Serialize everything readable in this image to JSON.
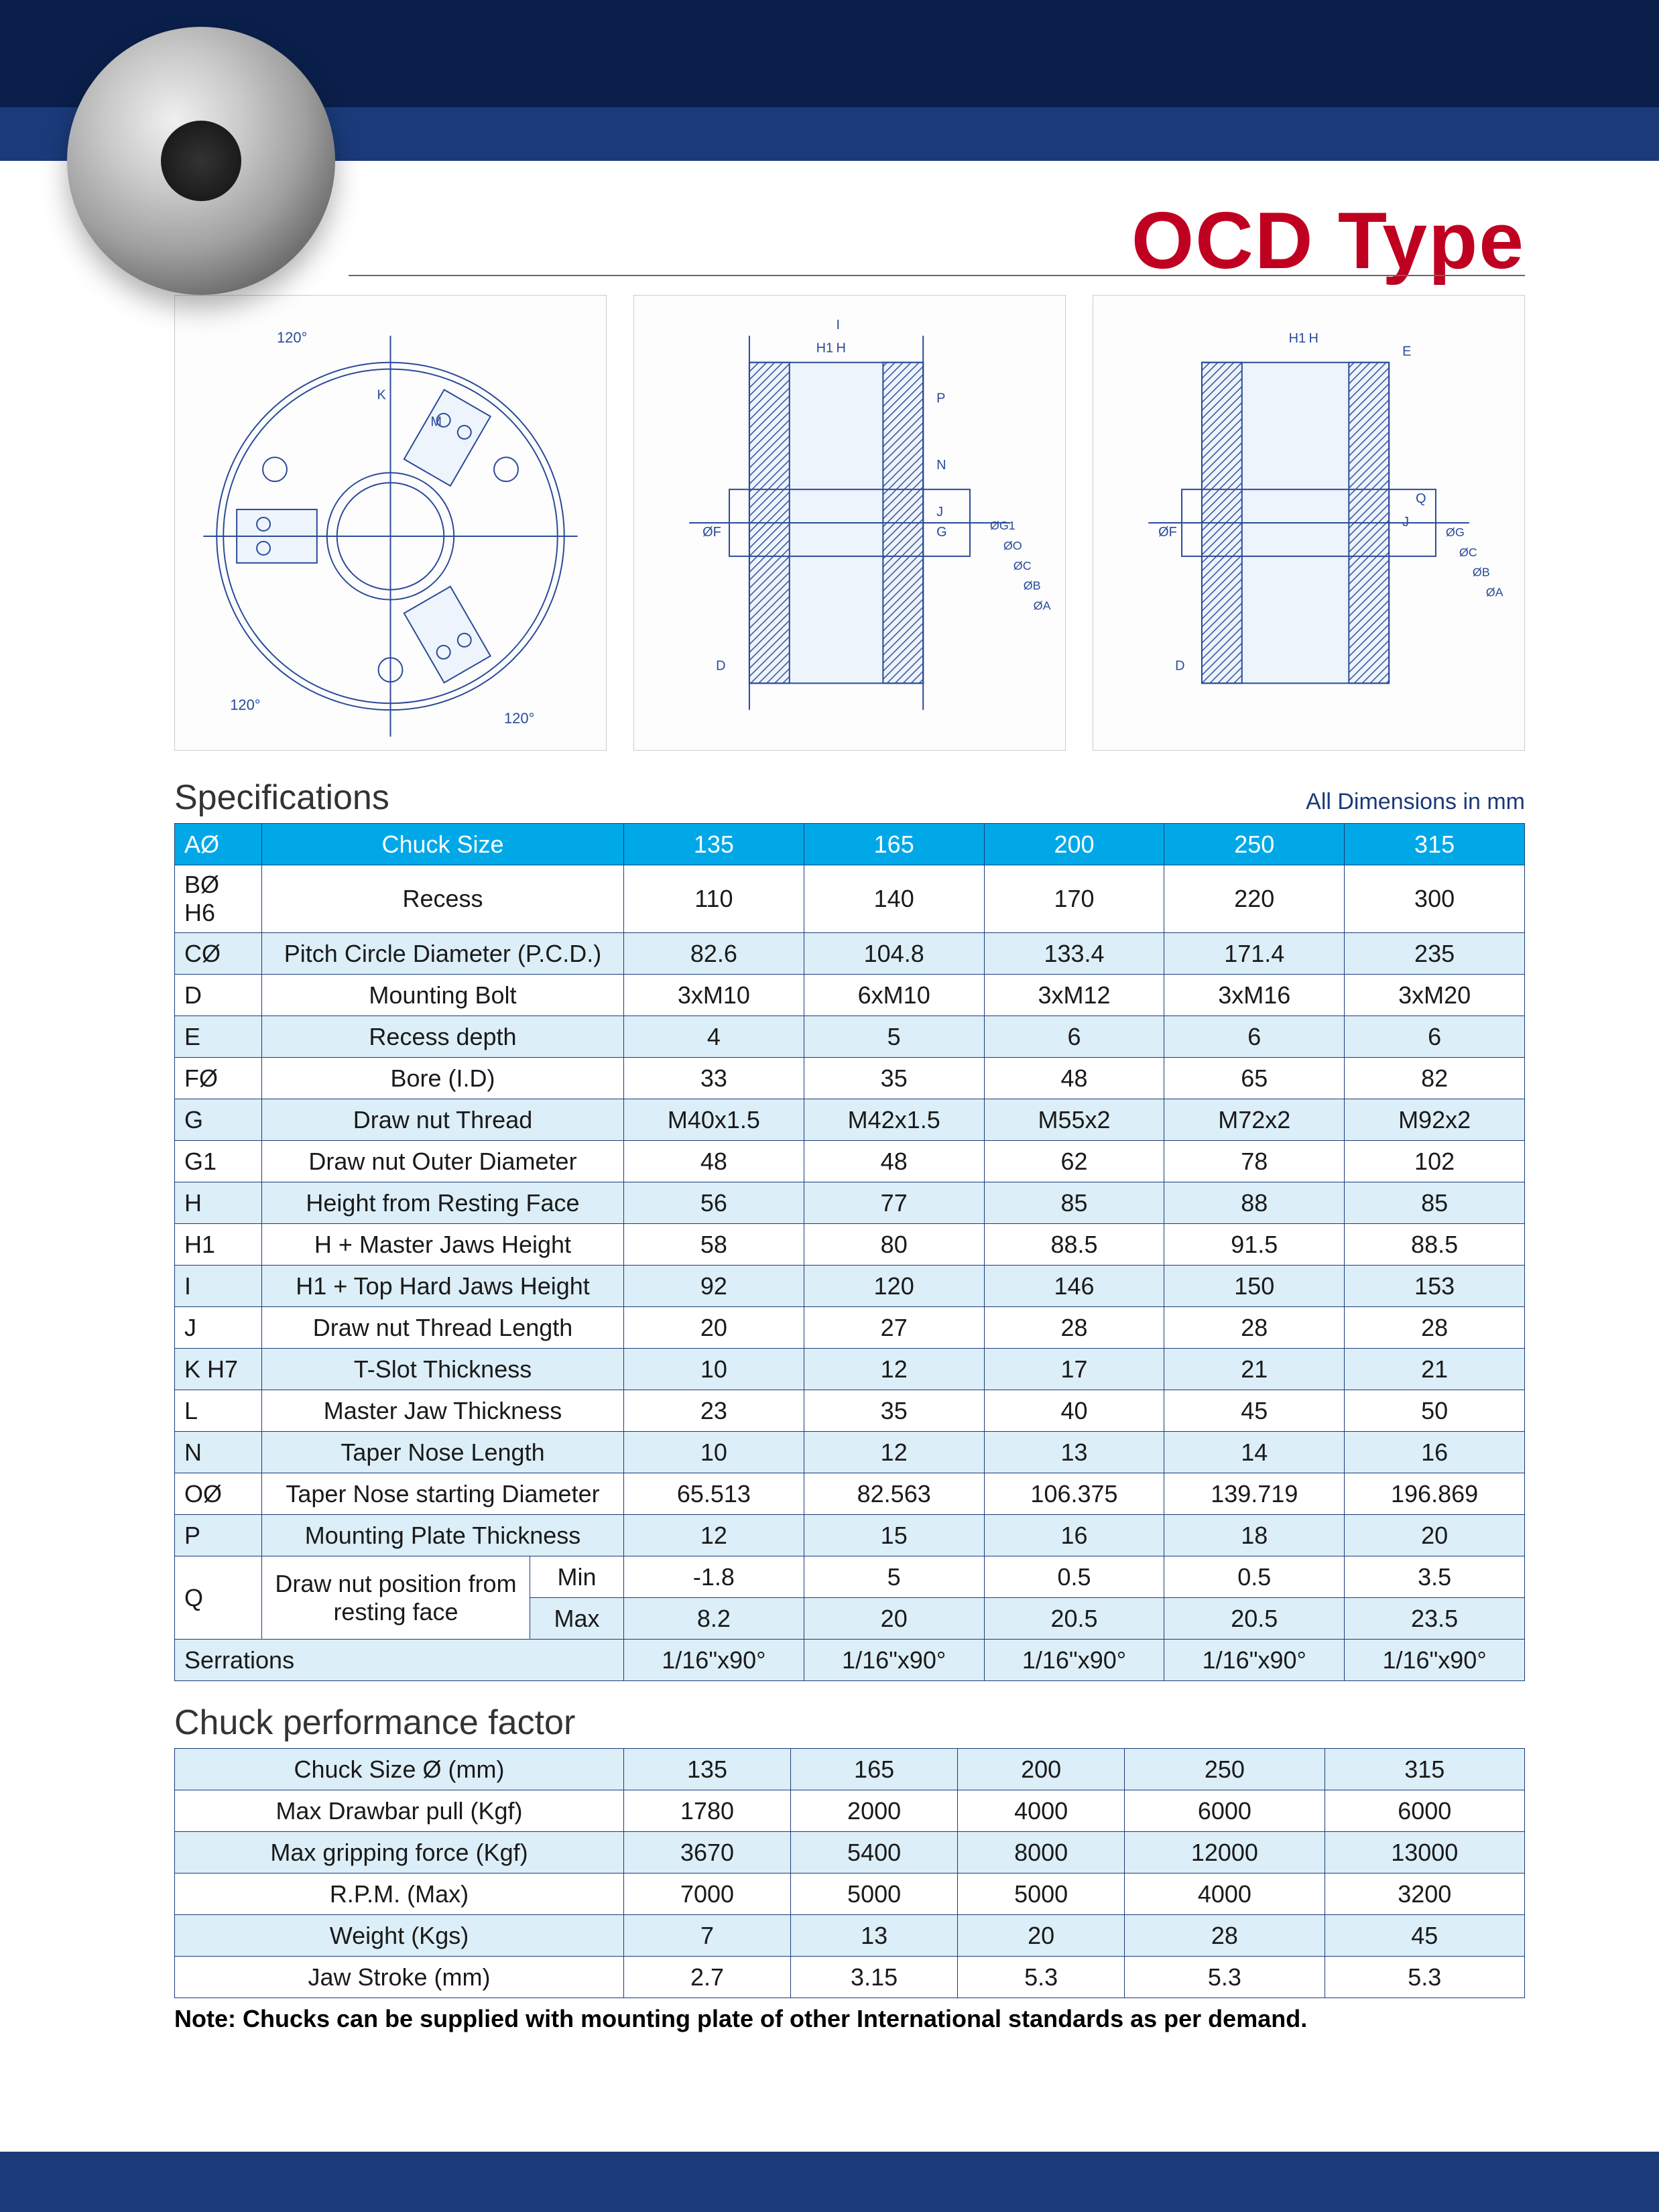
{
  "title": "OCD Type",
  "dimensions_note": "All Dimensions in mm",
  "colors": {
    "header_bg": "#00a8e8",
    "header_text": "#ffffff",
    "alt_row_bg": "#dceef7",
    "border": "#1a3a7a",
    "title_color": "#c00020",
    "band_color": "#1a3a7a"
  },
  "spec": {
    "section_title": "Specifications",
    "header": {
      "code": "AØ",
      "desc": "Chuck Size",
      "vals": [
        "135",
        "165",
        "200",
        "250",
        "315"
      ]
    },
    "rows": [
      {
        "code": "BØ H6",
        "desc": "Recess",
        "vals": [
          "110",
          "140",
          "170",
          "220",
          "300"
        ]
      },
      {
        "code": "CØ",
        "desc": "Pitch Circle Diameter (P.C.D.)",
        "vals": [
          "82.6",
          "104.8",
          "133.4",
          "171.4",
          "235"
        ]
      },
      {
        "code": "D",
        "desc": "Mounting Bolt",
        "vals": [
          "3xM10",
          "6xM10",
          "3xM12",
          "3xM16",
          "3xM20"
        ]
      },
      {
        "code": "E",
        "desc": "Recess depth",
        "vals": [
          "4",
          "5",
          "6",
          "6",
          "6"
        ]
      },
      {
        "code": "FØ",
        "desc": "Bore (I.D)",
        "vals": [
          "33",
          "35",
          "48",
          "65",
          "82"
        ]
      },
      {
        "code": "G",
        "desc": "Draw nut Thread",
        "vals": [
          "M40x1.5",
          "M42x1.5",
          "M55x2",
          "M72x2",
          "M92x2"
        ]
      },
      {
        "code": "G1",
        "desc": "Draw nut Outer Diameter",
        "vals": [
          "48",
          "48",
          "62",
          "78",
          "102"
        ]
      },
      {
        "code": "H",
        "desc": "Height from Resting Face",
        "vals": [
          "56",
          "77",
          "85",
          "88",
          "85"
        ]
      },
      {
        "code": "H1",
        "desc": "H + Master Jaws Height",
        "vals": [
          "58",
          "80",
          "88.5",
          "91.5",
          "88.5"
        ]
      },
      {
        "code": "I",
        "desc": "H1 + Top Hard Jaws Height",
        "vals": [
          "92",
          "120",
          "146",
          "150",
          "153"
        ]
      },
      {
        "code": "J",
        "desc": "Draw nut Thread Length",
        "vals": [
          "20",
          "27",
          "28",
          "28",
          "28"
        ]
      },
      {
        "code": "K H7",
        "desc": "T-Slot Thickness",
        "vals": [
          "10",
          "12",
          "17",
          "21",
          "21"
        ]
      },
      {
        "code": "L",
        "desc": "Master Jaw Thickness",
        "vals": [
          "23",
          "35",
          "40",
          "45",
          "50"
        ]
      },
      {
        "code": "N",
        "desc": "Taper Nose Length",
        "vals": [
          "10",
          "12",
          "13",
          "14",
          "16"
        ]
      },
      {
        "code": "OØ",
        "desc": "Taper Nose starting Diameter",
        "vals": [
          "65.513",
          "82.563",
          "106.375",
          "139.719",
          "196.869"
        ]
      },
      {
        "code": "P",
        "desc": "Mounting Plate Thickness",
        "vals": [
          "12",
          "15",
          "16",
          "18",
          "20"
        ]
      }
    ],
    "q_row": {
      "code": "Q",
      "desc": "Draw nut position from resting face",
      "sub": [
        {
          "label": "Min",
          "vals": [
            "-1.8",
            "5",
            "0.5",
            "0.5",
            "3.5"
          ]
        },
        {
          "label": "Max",
          "vals": [
            "8.2",
            "20",
            "20.5",
            "20.5",
            "23.5"
          ]
        }
      ]
    },
    "serrations": {
      "label": "Serrations",
      "vals": [
        "1/16\"x90°",
        "1/16\"x90°",
        "1/16\"x90°",
        "1/16\"x90°",
        "1/16\"x90°"
      ]
    }
  },
  "perf": {
    "section_title": "Chuck performance factor",
    "rows": [
      {
        "desc": "Chuck Size Ø (mm)",
        "vals": [
          "135",
          "165",
          "200",
          "250",
          "315"
        ]
      },
      {
        "desc": "Max Drawbar pull (Kgf)",
        "vals": [
          "1780",
          "2000",
          "4000",
          "6000",
          "6000"
        ]
      },
      {
        "desc": "Max gripping force (Kgf)",
        "vals": [
          "3670",
          "5400",
          "8000",
          "12000",
          "13000"
        ]
      },
      {
        "desc": "R.P.M. (Max)",
        "vals": [
          "7000",
          "5000",
          "5000",
          "4000",
          "3200"
        ]
      },
      {
        "desc": "Weight (Kgs)",
        "vals": [
          "7",
          "13",
          "20",
          "28",
          "45"
        ]
      },
      {
        "desc": "Jaw Stroke (mm)",
        "vals": [
          "2.7",
          "3.15",
          "5.3",
          "5.3",
          "5.3"
        ]
      }
    ]
  },
  "note": "Note: Chucks can be supplied with mounting plate of other International standards as per demand.",
  "diagram_labels": {
    "front_angle": "120°",
    "letters": [
      "K",
      "M",
      "H",
      "H1",
      "I",
      "P",
      "N",
      "J",
      "G",
      "D",
      "E",
      "Q",
      "ØF",
      "ØG1",
      "ØO",
      "ØC",
      "ØB",
      "ØA",
      "ØG"
    ]
  }
}
